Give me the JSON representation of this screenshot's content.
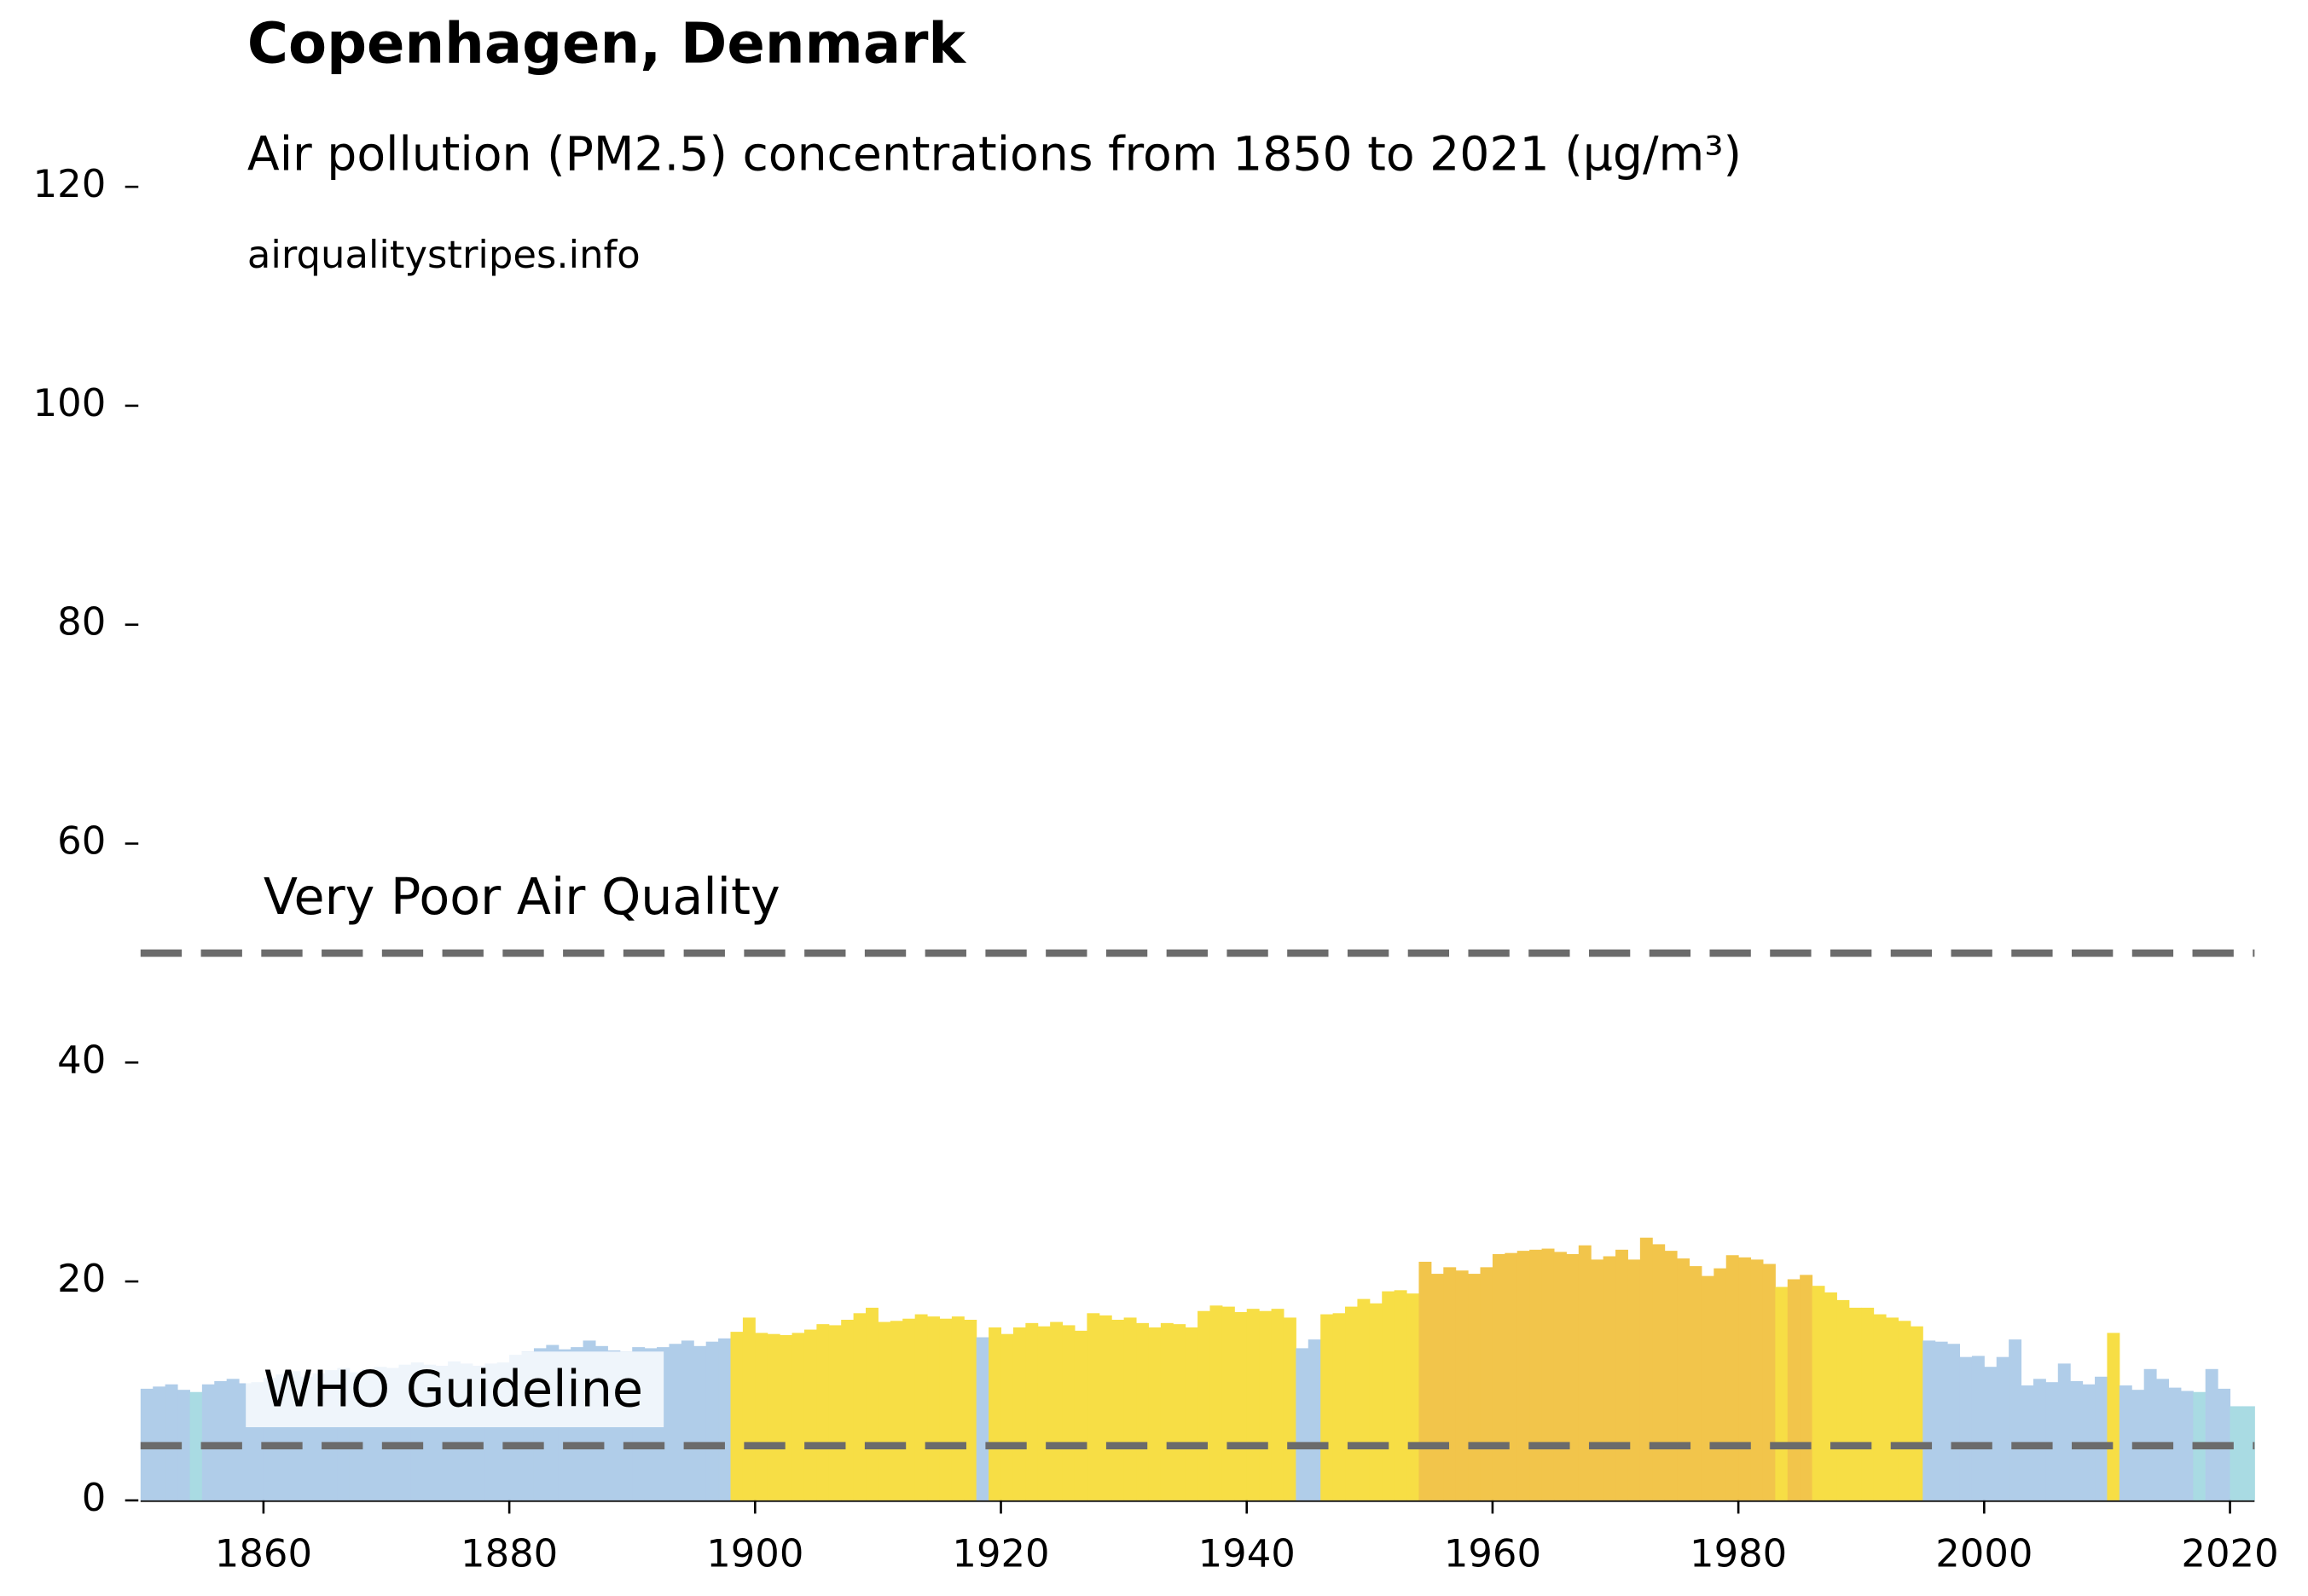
{
  "chart_data": {
    "type": "bar",
    "title": "Copenhagen, Denmark",
    "subtitle": "Air pollution (PM2.5) concentrations from 1850 to 2021 (µg/m³)",
    "source": "airqualitystripes.info",
    "x": [
      1850,
      1851,
      1852,
      1853,
      1854,
      1855,
      1856,
      1857,
      1858,
      1859,
      1860,
      1861,
      1862,
      1863,
      1864,
      1865,
      1866,
      1867,
      1868,
      1869,
      1870,
      1871,
      1872,
      1873,
      1874,
      1875,
      1876,
      1877,
      1878,
      1879,
      1880,
      1881,
      1882,
      1883,
      1884,
      1885,
      1886,
      1887,
      1888,
      1889,
      1890,
      1891,
      1892,
      1893,
      1894,
      1895,
      1896,
      1897,
      1898,
      1899,
      1900,
      1901,
      1902,
      1903,
      1904,
      1905,
      1906,
      1907,
      1908,
      1909,
      1910,
      1911,
      1912,
      1913,
      1914,
      1915,
      1916,
      1917,
      1918,
      1919,
      1920,
      1921,
      1922,
      1923,
      1924,
      1925,
      1926,
      1927,
      1928,
      1929,
      1930,
      1931,
      1932,
      1933,
      1934,
      1935,
      1936,
      1937,
      1938,
      1939,
      1940,
      1941,
      1942,
      1943,
      1944,
      1945,
      1946,
      1947,
      1948,
      1949,
      1950,
      1951,
      1952,
      1953,
      1954,
      1955,
      1956,
      1957,
      1958,
      1959,
      1960,
      1961,
      1962,
      1963,
      1964,
      1965,
      1966,
      1967,
      1968,
      1969,
      1970,
      1971,
      1972,
      1973,
      1974,
      1975,
      1976,
      1977,
      1978,
      1979,
      1980,
      1981,
      1982,
      1983,
      1984,
      1985,
      1986,
      1987,
      1988,
      1989,
      1990,
      1991,
      1992,
      1993,
      1994,
      1995,
      1996,
      1997,
      1998,
      1999,
      2000,
      2001,
      2002,
      2003,
      2004,
      2005,
      2006,
      2007,
      2008,
      2009,
      2010,
      2011,
      2012,
      2013,
      2014,
      2015,
      2016,
      2017,
      2018,
      2019,
      2020,
      2021
    ],
    "values": [
      10.2,
      10.4,
      10.6,
      10.1,
      9.9,
      10.6,
      10.9,
      11.1,
      10.7,
      10.8,
      11.2,
      11.5,
      11.8,
      11.3,
      11.6,
      11.9,
      12.1,
      11.7,
      12.0,
      12.2,
      12.1,
      12.4,
      12.6,
      12.4,
      12.3,
      12.7,
      12.5,
      12.3,
      12.5,
      12.6,
      13.3,
      13.6,
      13.9,
      14.2,
      13.8,
      14.0,
      14.6,
      14.1,
      13.7,
      13.6,
      14.0,
      13.9,
      14.0,
      14.3,
      14.6,
      14.1,
      14.5,
      14.8,
      15.4,
      16.7,
      15.3,
      15.2,
      15.1,
      15.3,
      15.6,
      16.1,
      16.0,
      16.5,
      17.1,
      17.6,
      16.3,
      16.4,
      16.6,
      17.0,
      16.8,
      16.6,
      16.8,
      16.5,
      14.9,
      15.8,
      15.2,
      15.8,
      16.2,
      15.9,
      16.3,
      16.0,
      15.5,
      17.1,
      16.9,
      16.5,
      16.7,
      16.2,
      15.8,
      16.2,
      16.1,
      15.8,
      17.3,
      17.8,
      17.7,
      17.2,
      17.5,
      17.3,
      17.5,
      16.7,
      13.9,
      14.7,
      17.0,
      17.1,
      17.7,
      18.4,
      18.0,
      19.1,
      19.2,
      18.9,
      21.8,
      20.7,
      21.3,
      21.0,
      20.7,
      21.3,
      22.5,
      22.6,
      22.8,
      22.9,
      23.0,
      22.7,
      22.5,
      23.3,
      22.0,
      22.3,
      22.9,
      22.0,
      24.0,
      23.4,
      22.8,
      22.1,
      21.4,
      20.5,
      21.2,
      22.4,
      22.2,
      22.0,
      21.6,
      19.5,
      20.2,
      20.6,
      19.6,
      19.0,
      18.3,
      17.6,
      17.6,
      17.0,
      16.7,
      16.4,
      15.9,
      14.6,
      14.5,
      14.3,
      13.1,
      13.2,
      12.2,
      13.1,
      14.7,
      10.5,
      11.1,
      10.8,
      12.5,
      10.9,
      10.6,
      11.3,
      15.3,
      10.5,
      10.1,
      12.0,
      11.1,
      10.3,
      10.0,
      9.9,
      12.0,
      10.2,
      8.6,
      8.6
    ],
    "colors": [
      "#b0cde9",
      "#b0cde9",
      "#b0cde9",
      "#b0cde9",
      "#a9dbe3",
      "#b0cde9",
      "#b0cde9",
      "#b0cde9",
      "#b0cde9",
      "#b0cde9",
      "#b0cde9",
      "#b0cde9",
      "#b0cde9",
      "#b0cde9",
      "#b0cde9",
      "#b0cde9",
      "#b0cde9",
      "#b0cde9",
      "#b0cde9",
      "#b0cde9",
      "#b0cde9",
      "#b0cde9",
      "#b0cde9",
      "#b0cde9",
      "#b0cde9",
      "#b0cde9",
      "#b0cde9",
      "#b0cde9",
      "#b0cde9",
      "#b0cde9",
      "#b0cde9",
      "#b0cde9",
      "#b0cde9",
      "#b0cde9",
      "#b0cde9",
      "#b0cde9",
      "#b0cde9",
      "#b0cde9",
      "#b0cde9",
      "#b0cde9",
      "#b0cde9",
      "#b0cde9",
      "#b0cde9",
      "#b0cde9",
      "#b0cde9",
      "#b0cde9",
      "#b0cde9",
      "#b0cde9",
      "#f7de45",
      "#f7de45",
      "#f7de45",
      "#f7de45",
      "#f7de45",
      "#f7de45",
      "#f7de45",
      "#f7de45",
      "#f7de45",
      "#f7de45",
      "#f7de45",
      "#f7de45",
      "#f7de45",
      "#f7de45",
      "#f7de45",
      "#f7de45",
      "#f7de45",
      "#f7de45",
      "#f7de45",
      "#f7de45",
      "#b0cde9",
      "#f7de45",
      "#f7de45",
      "#f7de45",
      "#f7de45",
      "#f7de45",
      "#f7de45",
      "#f7de45",
      "#f7de45",
      "#f7de45",
      "#f7de45",
      "#f7de45",
      "#f7de45",
      "#f7de45",
      "#f7de45",
      "#f7de45",
      "#f7de45",
      "#f7de45",
      "#f7de45",
      "#f7de45",
      "#f7de45",
      "#f7de45",
      "#f7de45",
      "#f7de45",
      "#f7de45",
      "#f7de45",
      "#b0cde9",
      "#b0cde9",
      "#f7de45",
      "#f7de45",
      "#f7de45",
      "#f7de45",
      "#f7de45",
      "#f7de45",
      "#f7de45",
      "#f7de45",
      "#f2c54b",
      "#f2c54b",
      "#f2c54b",
      "#f2c54b",
      "#f2c54b",
      "#f2c54b",
      "#f2c54b",
      "#f2c54b",
      "#f2c54b",
      "#f2c54b",
      "#f2c54b",
      "#f2c54b",
      "#f2c54b",
      "#f2c54b",
      "#f2c54b",
      "#f2c54b",
      "#f2c54b",
      "#f2c54b",
      "#f2c54b",
      "#f2c54b",
      "#f2c54b",
      "#f2c54b",
      "#f2c54b",
      "#f2c54b",
      "#f2c54b",
      "#f2c54b",
      "#f2c54b",
      "#f2c54b",
      "#f2c54b",
      "#f7de45",
      "#f2c54b",
      "#f2c54b",
      "#f7de45",
      "#f7de45",
      "#f7de45",
      "#f7de45",
      "#f7de45",
      "#f7de45",
      "#f7de45",
      "#f7de45",
      "#f7de45",
      "#b0cde9",
      "#b0cde9",
      "#b0cde9",
      "#b0cde9",
      "#b0cde9",
      "#b0cde9",
      "#b0cde9",
      "#b0cde9",
      "#b0cde9",
      "#b0cde9",
      "#b0cde9",
      "#b0cde9",
      "#b0cde9",
      "#b0cde9",
      "#b0cde9",
      "#f7de45",
      "#b0cde9",
      "#b0cde9",
      "#b0cde9",
      "#b0cde9",
      "#b0cde9",
      "#b0cde9",
      "#a9dbe3",
      "#b0cde9",
      "#b0cde9",
      "#a9dbe3",
      "#a9dbe3"
    ],
    "xlim": [
      1850,
      2022
    ],
    "ylim": [
      0,
      120
    ],
    "xticks": [
      1860,
      1880,
      1900,
      1920,
      1940,
      1960,
      1980,
      2000,
      2020
    ],
    "yticks": [
      0,
      20,
      40,
      60,
      80,
      100,
      120
    ],
    "reference_lines": [
      {
        "label": "WHO Guideline",
        "value": 5
      },
      {
        "label": "Very Poor Air Quality",
        "value": 50
      }
    ],
    "reference_color": "#6b6b6b"
  }
}
